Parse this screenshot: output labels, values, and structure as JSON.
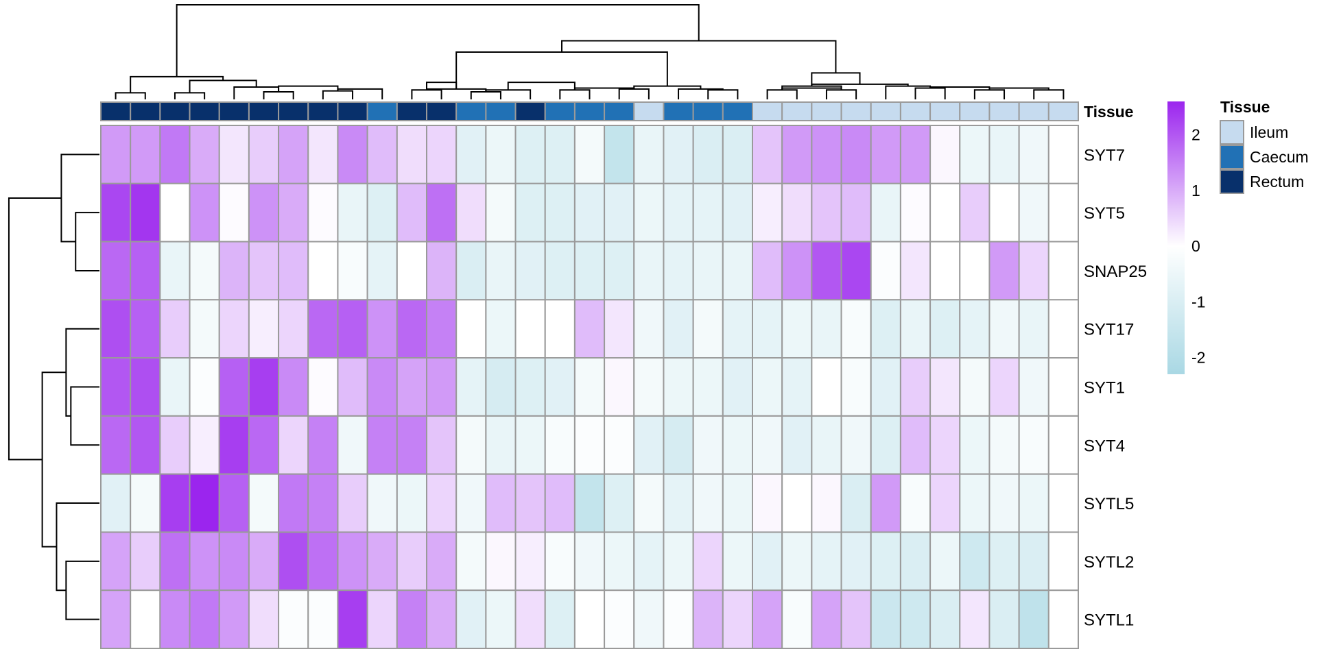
{
  "chart_data": {
    "type": "heatmap",
    "annotation_title": "Tissue",
    "tissue_annotation": [
      "Rectum",
      "Rectum",
      "Rectum",
      "Rectum",
      "Rectum",
      "Rectum",
      "Rectum",
      "Rectum",
      "Rectum",
      "Caecum",
      "Rectum",
      "Rectum",
      "Caecum",
      "Caecum",
      "Rectum",
      "Caecum",
      "Caecum",
      "Caecum",
      "Ileum",
      "Caecum",
      "Caecum",
      "Caecum",
      "Ileum",
      "Ileum",
      "Ileum",
      "Ileum",
      "Ileum",
      "Ileum",
      "Ileum",
      "Ileum",
      "Ileum",
      "Ileum",
      "Ileum"
    ],
    "rows": [
      "SYT7",
      "SYT5",
      "SNAP25",
      "SYT17",
      "SYT1",
      "SYT4",
      "SYTL5",
      "SYTL2",
      "SYTL1"
    ],
    "values": [
      [
        1.2,
        1.2,
        1.6,
        1.0,
        0.3,
        0.6,
        1.1,
        0.3,
        1.4,
        0.8,
        0.4,
        0.5,
        -0.8,
        -0.5,
        -0.9,
        -0.9,
        -0.3,
        -1.6,
        -0.6,
        -0.8,
        -1.0,
        -1.0,
        0.7,
        1.2,
        1.3,
        1.4,
        1.2,
        1.2,
        0.1,
        -0.5,
        -0.6,
        -0.4,
        0
      ],
      [
        2.2,
        2.4,
        0,
        1.3,
        0.05,
        1.3,
        1.0,
        0.05,
        -0.6,
        -0.9,
        0.8,
        1.7,
        0.4,
        -0.3,
        -0.9,
        -0.9,
        -0.8,
        -0.8,
        -0.5,
        -0.7,
        -0.7,
        -0.8,
        0.2,
        0.4,
        0.7,
        0.8,
        -0.6,
        0.05,
        0,
        0.6,
        0,
        -0.4,
        0
      ],
      [
        1.8,
        1.9,
        -0.6,
        -0.3,
        0.9,
        0.7,
        0.8,
        0,
        -0.2,
        -0.7,
        0,
        0.9,
        -1.0,
        -0.6,
        -0.8,
        -0.9,
        -0.9,
        -0.9,
        -0.6,
        -0.7,
        -0.6,
        -0.6,
        0.8,
        1.3,
        2.0,
        2.2,
        -0.1,
        0.3,
        0,
        0,
        1.2,
        0.5,
        0
      ],
      [
        2.1,
        1.9,
        0.6,
        -0.3,
        0.5,
        0.2,
        0.5,
        1.8,
        1.9,
        1.3,
        1.8,
        1.5,
        0,
        -0.5,
        0,
        0,
        0.8,
        0.3,
        -0.4,
        -0.8,
        -0.3,
        -0.7,
        -0.7,
        -0.5,
        -0.6,
        -0.2,
        -0.9,
        -0.6,
        -0.9,
        -0.7,
        -0.4,
        -0.6,
        0
      ],
      [
        2.0,
        2.1,
        -0.6,
        -0.1,
        1.9,
        2.3,
        1.4,
        0.05,
        0.8,
        1.4,
        1.1,
        1.2,
        -0.7,
        -1.1,
        -0.9,
        -0.8,
        -0.3,
        0.1,
        -0.3,
        -0.5,
        -0.5,
        -0.8,
        -0.5,
        -0.7,
        0,
        -0.2,
        -0.8,
        0.6,
        0.3,
        -0.3,
        0.5,
        -0.4,
        0
      ],
      [
        1.8,
        2.0,
        0.6,
        0.2,
        2.3,
        1.8,
        0.5,
        1.5,
        -0.4,
        1.5,
        1.5,
        0.7,
        -0.3,
        -0.6,
        -0.5,
        -0.2,
        -0.1,
        -0.1,
        -0.8,
        -1.1,
        -0.4,
        -0.5,
        -0.4,
        -0.8,
        -0.6,
        -0.4,
        -0.9,
        0.8,
        0.5,
        -0.5,
        -0.3,
        -0.2,
        0
      ],
      [
        -0.8,
        -0.3,
        2.3,
        2.6,
        1.9,
        -0.3,
        1.6,
        1.5,
        0.6,
        -0.4,
        -0.5,
        0.5,
        -0.4,
        0.8,
        0.7,
        0.8,
        -1.6,
        -0.9,
        -0.3,
        -0.7,
        -0.4,
        -0.5,
        0.1,
        0,
        0.1,
        -1.0,
        1.2,
        -0.2,
        0.5,
        -0.5,
        -0.4,
        -0.5,
        0
      ],
      [
        1.1,
        0.6,
        1.7,
        1.3,
        1.4,
        1.0,
        2.1,
        1.7,
        1.3,
        1.0,
        0.6,
        1.0,
        -0.3,
        0.1,
        0.2,
        -0.2,
        -0.4,
        -0.5,
        -0.7,
        -0.5,
        0.5,
        -0.5,
        -0.8,
        -0.5,
        -0.7,
        -0.8,
        -0.9,
        -1.0,
        -0.5,
        -1.3,
        -0.9,
        -1.0,
        0
      ],
      [
        1.1,
        0,
        1.4,
        1.6,
        1.2,
        0.4,
        -0.1,
        -0.1,
        2.3,
        0.5,
        1.5,
        1.0,
        -0.8,
        -0.5,
        0.4,
        -0.9,
        0,
        -0.1,
        -0.4,
        -0.1,
        0.9,
        0.5,
        1.1,
        -0.2,
        1.1,
        0.7,
        -1.4,
        -1.3,
        -1.0,
        0.3,
        -1.0,
        -1.7,
        0
      ]
    ],
    "color_scale": {
      "min": -2.3,
      "max": 2.6,
      "low": "#a9d8e4",
      "mid": "#ffffff",
      "high": "#9b25ee"
    },
    "legend_ticks": [
      2,
      1,
      0,
      -1,
      -2
    ],
    "legend_entries": [
      {
        "name": "Ileum",
        "color": "#c6dbef"
      },
      {
        "name": "Caecum",
        "color": "#2171b5"
      },
      {
        "name": "Rectum",
        "color": "#08306b"
      }
    ],
    "col_dendrogram": [
      [
        0,
        1,
        0.07
      ],
      [
        2,
        3,
        0.07
      ],
      [
        12,
        13,
        0.08
      ],
      [
        5,
        6,
        0.08
      ],
      [
        7,
        8,
        0.09
      ],
      [
        13,
        14,
        0.1
      ],
      [
        15,
        16,
        0.1
      ],
      [
        10,
        11,
        0.1
      ],
      [
        20,
        21,
        0.1
      ],
      [
        22,
        23,
        0.1
      ],
      [
        24,
        25,
        0.1
      ],
      [
        29,
        30,
        0.1
      ],
      [
        31,
        32,
        0.1
      ],
      [
        8,
        9,
        0.11
      ],
      [
        11,
        12,
        0.11
      ],
      [
        17,
        18,
        0.11
      ],
      [
        19,
        20,
        0.11
      ],
      [
        16,
        17,
        0.12
      ],
      [
        23,
        24,
        0.12
      ],
      [
        27,
        28,
        0.12
      ],
      [
        30,
        31,
        0.12
      ],
      [
        4,
        5,
        0.13
      ],
      [
        28,
        29,
        0.13
      ],
      [
        6,
        7,
        0.14
      ],
      [
        18,
        19,
        0.14
      ],
      [
        22,
        25,
        0.14
      ],
      [
        26,
        27,
        0.14
      ],
      [
        25,
        26,
        0.16
      ],
      [
        10,
        11,
        0.18
      ],
      [
        14,
        15,
        0.18
      ],
      [
        2,
        4,
        0.2
      ],
      [
        0,
        2,
        0.24
      ],
      [
        22,
        26,
        0.28
      ],
      [
        12,
        18,
        0.5
      ],
      [
        12,
        22,
        0.62
      ],
      [
        0,
        12,
        1.0
      ]
    ],
    "row_dendrogram": [
      [
        1,
        2,
        0.25
      ],
      [
        4,
        5,
        0.3
      ],
      [
        7,
        8,
        0.35
      ],
      [
        0,
        1,
        0.4
      ],
      [
        3,
        4,
        0.35
      ],
      [
        6,
        7,
        0.45
      ],
      [
        3,
        6,
        0.6
      ],
      [
        0,
        3,
        0.95
      ]
    ],
    "annotation_dendro_mode": "columns"
  }
}
